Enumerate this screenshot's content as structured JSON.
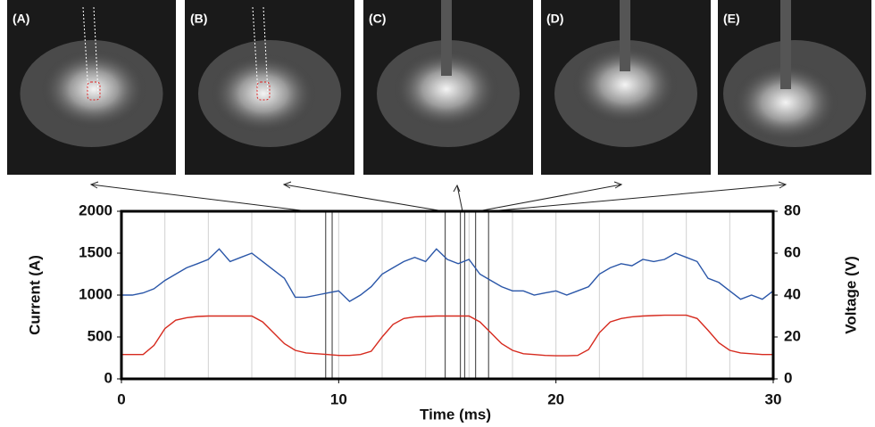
{
  "chart_data": {
    "type": "line",
    "panel_labels": [
      "(A)",
      "(B)",
      "(C)",
      "(D)",
      "(E)"
    ],
    "xlabel": "Time (ms)",
    "ylabel": "Current (A)",
    "y2label": "Voltage (V)",
    "x": [
      0,
      0.5,
      1,
      1.5,
      2,
      2.5,
      3,
      3.5,
      4,
      4.5,
      5,
      5.5,
      6,
      6.5,
      7,
      7.5,
      8,
      8.5,
      9,
      9.5,
      10,
      10.5,
      11,
      11.5,
      12,
      12.5,
      13,
      13.5,
      14,
      14.5,
      15,
      15.5,
      16,
      16.5,
      17,
      17.5,
      18,
      18.5,
      19,
      19.5,
      20,
      20.5,
      21,
      21.5,
      22,
      22.5,
      23,
      23.5,
      24,
      24.5,
      25,
      25.5,
      26,
      26.5,
      27,
      27.5,
      28,
      28.5,
      29,
      29.5,
      30
    ],
    "series": [
      {
        "color": "#d62a1e",
        "axis": "y",
        "values": [
          290,
          290,
          290,
          400,
          600,
          700,
          730,
          745,
          750,
          750,
          750,
          750,
          750,
          680,
          550,
          420,
          340,
          310,
          300,
          290,
          280,
          280,
          290,
          330,
          500,
          650,
          720,
          740,
          745,
          750,
          750,
          750,
          750,
          680,
          550,
          420,
          340,
          300,
          290,
          280,
          275,
          275,
          280,
          350,
          550,
          680,
          720,
          740,
          750,
          755,
          760,
          760,
          760,
          720,
          580,
          430,
          340,
          310,
          300,
          290,
          290
        ]
      },
      {
        "color": "#2a56a8",
        "axis": "y2",
        "values": [
          40,
          40,
          41,
          43,
          47,
          50,
          53,
          55,
          57,
          62,
          56,
          58,
          60,
          56,
          52,
          48,
          39,
          39,
          40,
          41,
          42,
          37,
          40,
          44,
          50,
          53,
          56,
          58,
          56,
          62,
          57,
          55,
          57,
          50,
          47,
          44,
          42,
          42,
          40,
          41,
          42,
          40,
          42,
          44,
          50,
          53,
          55,
          54,
          57,
          56,
          57,
          60,
          58,
          56,
          48,
          46,
          42,
          38,
          40,
          38,
          42
        ]
      }
    ],
    "markers": [
      9.4,
      9.7,
      14.9,
      15.6,
      15.8,
      16.3,
      16.9
    ],
    "xlim": [
      0,
      30
    ],
    "xticks": [
      0,
      10,
      20,
      30
    ],
    "xgrid": [
      2,
      4,
      6,
      8,
      10,
      12,
      14,
      16,
      18,
      20,
      22,
      24,
      26,
      28
    ],
    "ylim": [
      0,
      2000
    ],
    "yticks": [
      0,
      500,
      1000,
      1500,
      2000
    ],
    "y2lim": [
      0,
      80
    ],
    "y2ticks": [
      0,
      20,
      40,
      60,
      80
    ]
  }
}
